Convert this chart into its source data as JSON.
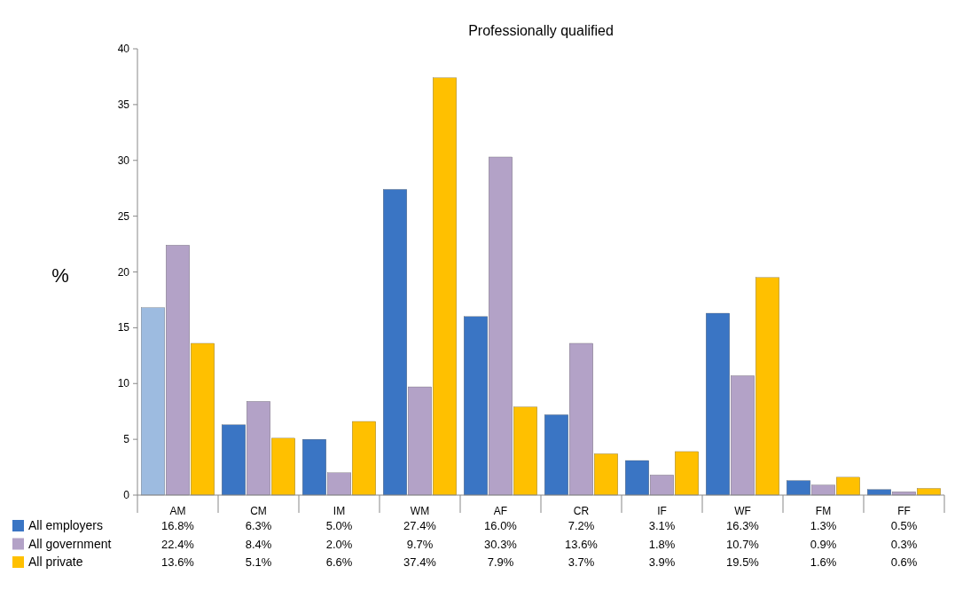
{
  "chart_data": {
    "type": "bar",
    "title": "Professionally qualified",
    "ylabel": "%",
    "categories": [
      "AM",
      "CM",
      "IM",
      "WM",
      "AF",
      "CR",
      "IF",
      "WF",
      "FM",
      "FF"
    ],
    "series": [
      {
        "name": "All employers",
        "color": "#3a75c4",
        "colors": [
          "#9dbbe0",
          "#3a75c4",
          "#3a75c4",
          "#3a75c4",
          "#3a75c4",
          "#3a75c4",
          "#3a75c4",
          "#3a75c4",
          "#3a75c4",
          "#3a75c4"
        ],
        "values": [
          16.8,
          6.3,
          5.0,
          27.4,
          16.0,
          7.2,
          3.1,
          16.3,
          1.3,
          0.5
        ],
        "value_labels": [
          "16.8%",
          "6.3%",
          "5.0%",
          "27.4%",
          "16.0%",
          "7.2%",
          "3.1%",
          "16.3%",
          "1.3%",
          "0.5%"
        ]
      },
      {
        "name": "All government",
        "color": "#b3a2c7",
        "values": [
          22.4,
          8.4,
          2.0,
          9.7,
          30.3,
          13.6,
          1.8,
          10.7,
          0.9,
          0.3
        ],
        "value_labels": [
          "22.4%",
          "8.4%",
          "2.0%",
          "9.7%",
          "30.3%",
          "13.6%",
          "1.8%",
          "10.7%",
          "0.9%",
          "0.3%"
        ]
      },
      {
        "name": "All private",
        "color": "#ffc000",
        "values": [
          13.6,
          5.1,
          6.6,
          37.4,
          7.9,
          3.7,
          3.9,
          19.5,
          1.6,
          0.6
        ],
        "value_labels": [
          "13.6%",
          "5.1%",
          "6.6%",
          "37.4%",
          "7.9%",
          "3.7%",
          "3.9%",
          "19.5%",
          "1.6%",
          "0.6%"
        ]
      }
    ],
    "ylim": [
      0,
      40
    ],
    "yticks": [
      0,
      5,
      10,
      15,
      20,
      25,
      30,
      35,
      40
    ],
    "grid": false,
    "legend": "bottom left"
  }
}
